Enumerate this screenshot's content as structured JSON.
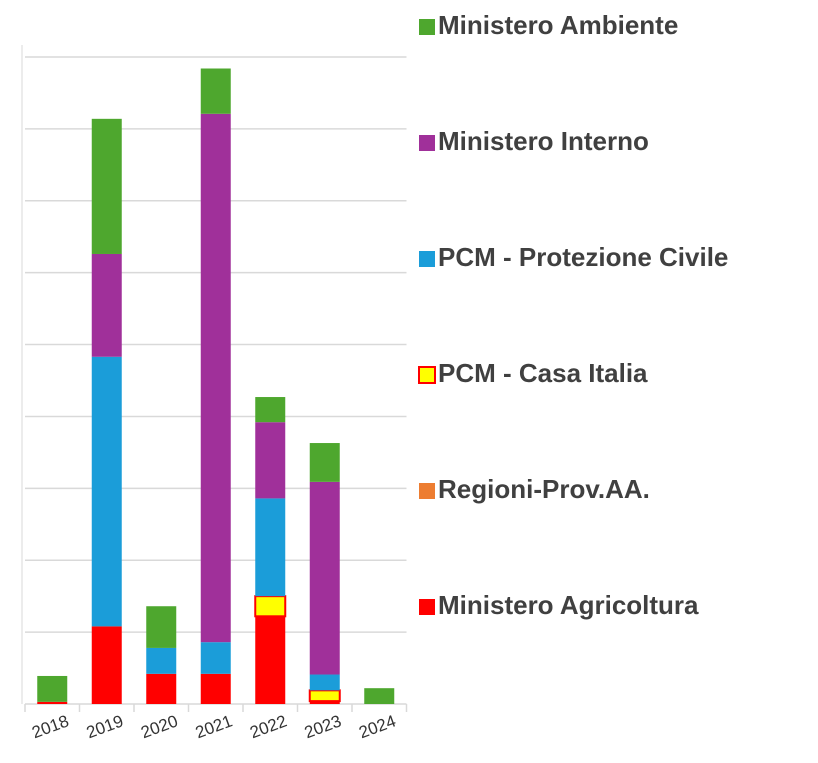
{
  "chart_data": {
    "type": "stacked_bar",
    "categories": [
      "2018",
      "2019",
      "2020",
      "2021",
      "2022",
      "2023",
      "2024"
    ],
    "series": [
      {
        "name": "Ministero Agricoltura",
        "color": "#ff0000",
        "values": [
          0.03,
          1.08,
          0.42,
          0.42,
          1.22,
          0.04,
          0
        ]
      },
      {
        "name": "Regioni-Prov.AA.",
        "color": "#ed7d31",
        "values": [
          0,
          0,
          0,
          0,
          0,
          0,
          0
        ]
      },
      {
        "name": "PCM - Casa Italia",
        "color": "#ffff00",
        "edgecolor": "#ff0000",
        "values": [
          0,
          0,
          0,
          0,
          0.28,
          0.15,
          0
        ]
      },
      {
        "name": "PCM - Protezione Civile",
        "color": "#1b9dd9",
        "values": [
          0,
          3.75,
          0.36,
          0.44,
          1.36,
          0.22,
          0
        ]
      },
      {
        "name": "Ministero Interno",
        "color": "#a0309a",
        "values": [
          0,
          1.43,
          0,
          7.35,
          1.06,
          2.68,
          0
        ]
      },
      {
        "name": "Ministero Ambiente",
        "color": "#4ea72e",
        "values": [
          0.36,
          1.88,
          0.58,
          0.63,
          0.35,
          0.54,
          0.22
        ]
      }
    ],
    "ylim": [
      0,
      9
    ],
    "yticks": [
      0,
      1,
      2,
      3,
      4,
      5,
      6,
      7,
      8,
      9
    ],
    "grid": true,
    "legend": "right"
  }
}
